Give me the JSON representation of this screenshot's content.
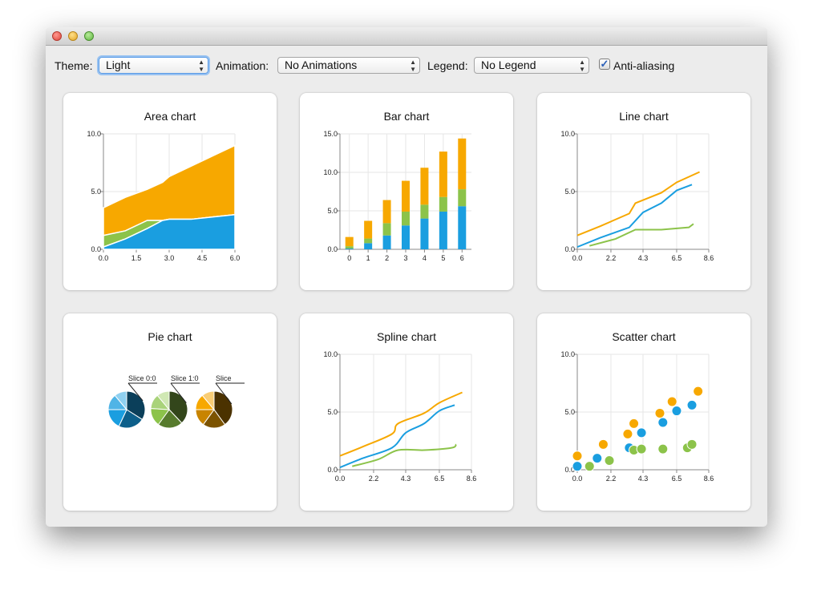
{
  "toolbar": {
    "theme_label": "Theme:",
    "theme_value": "Light",
    "animation_label": "Animation:",
    "animation_value": "No Animations",
    "legend_label": "Legend:",
    "legend_value": "No Legend",
    "antialias_label": "Anti-aliasing",
    "antialias_checked": true
  },
  "icons": {
    "close": "close-button",
    "minimize": "minimize-button",
    "maximize": "maximize-button",
    "combo_arrow": "up-down-arrows-icon",
    "check": "checkmark-icon"
  },
  "colors": {
    "blue": "#1a9ee0",
    "green": "#8cc34a",
    "orange": "#f7a800",
    "grid": "#e6e6e6",
    "axis": "#888888"
  },
  "chart_data": [
    {
      "type": "area",
      "title": "Area chart",
      "xlim": [
        0,
        6
      ],
      "ylim": [
        0,
        10
      ],
      "x_ticks": [
        "0.0",
        "1.5",
        "3.0",
        "4.5",
        "6.0"
      ],
      "y_ticks": [
        "0.0",
        "5.0",
        "10.0"
      ],
      "x": [
        0,
        1,
        2,
        2.7,
        3,
        4,
        5,
        6
      ],
      "series": [
        {
          "color": "#1a9ee0",
          "values": [
            0.2,
            0.9,
            1.8,
            2.5,
            2.6,
            2.6,
            2.8,
            3.0
          ]
        },
        {
          "color": "#8cc34a",
          "values": [
            1.2,
            1.6,
            2.5,
            2.5,
            2.6,
            2.6,
            2.8,
            3.0
          ]
        },
        {
          "color": "#f7a800",
          "values": [
            3.6,
            4.5,
            5.2,
            5.8,
            6.3,
            7.2,
            8.1,
            9.0
          ]
        }
      ]
    },
    {
      "type": "bar",
      "title": "Bar chart",
      "stacked": true,
      "ylim": [
        0,
        15
      ],
      "categories": [
        "0",
        "1",
        "2",
        "3",
        "4",
        "5",
        "6"
      ],
      "y_ticks": [
        "0.0",
        "5.0",
        "10.0",
        "15.0"
      ],
      "series": [
        {
          "color": "#1a9ee0",
          "values": [
            0.1,
            0.8,
            1.8,
            3.1,
            4.0,
            4.9,
            5.6
          ]
        },
        {
          "color": "#8cc34a",
          "values": [
            0.3,
            0.6,
            1.6,
            1.8,
            1.8,
            1.9,
            2.2
          ]
        },
        {
          "color": "#f7a800",
          "values": [
            1.2,
            2.3,
            3.0,
            4.0,
            4.8,
            5.9,
            6.6
          ]
        }
      ]
    },
    {
      "type": "line",
      "title": "Line chart",
      "xlim": [
        0,
        8.6
      ],
      "ylim": [
        0,
        10
      ],
      "x_ticks": [
        "0.0",
        "2.2",
        "4.3",
        "6.5",
        "8.6"
      ],
      "y_ticks": [
        "0.0",
        "5.0",
        "10.0"
      ],
      "series": [
        {
          "color": "#f7a800",
          "x": [
            0,
            1.5,
            3.4,
            3.8,
            5.5,
            6.5,
            8.0
          ],
          "y": [
            1.2,
            2.0,
            3.1,
            4.0,
            4.9,
            5.8,
            6.7
          ]
        },
        {
          "color": "#1a9ee0",
          "x": [
            0,
            1.5,
            3.4,
            4.3,
            5.5,
            6.5,
            7.5
          ],
          "y": [
            0.2,
            1.0,
            1.9,
            3.2,
            4.0,
            5.1,
            5.6
          ]
        },
        {
          "color": "#8cc34a",
          "x": [
            0.8,
            2.5,
            3.8,
            5.5,
            7.3,
            7.6
          ],
          "y": [
            0.3,
            0.9,
            1.7,
            1.7,
            1.9,
            2.2
          ]
        }
      ]
    },
    {
      "type": "pie",
      "title": "Pie chart",
      "pies": [
        {
          "label": "Slice 0:0",
          "colors": [
            "#0b3f5a",
            "#0d5f8a",
            "#1a9ee0",
            "#4fb4e6",
            "#8fd0f0"
          ],
          "values": [
            34,
            23,
            18,
            14,
            11
          ],
          "start_deg": 0
        },
        {
          "label": "Slice 1:0",
          "colors": [
            "#33461b",
            "#577b2d",
            "#8cc34a",
            "#a9d37a",
            "#d0e8b4"
          ],
          "values": [
            38,
            22,
            16,
            13,
            11
          ],
          "start_deg": 0
        },
        {
          "label": "Slice",
          "colors": [
            "#4b3200",
            "#7c5300",
            "#c88400",
            "#f7a800",
            "#f9cd75"
          ],
          "values": [
            40,
            20,
            15,
            14,
            11
          ],
          "start_deg": 0
        }
      ]
    },
    {
      "type": "line",
      "smooth": true,
      "title": "Spline chart",
      "xlim": [
        0,
        8.6
      ],
      "ylim": [
        0,
        10
      ],
      "x_ticks": [
        "0.0",
        "2.2",
        "4.3",
        "6.5",
        "8.6"
      ],
      "y_ticks": [
        "0.0",
        "5.0",
        "10.0"
      ],
      "series": [
        {
          "color": "#f7a800",
          "x": [
            0,
            1.5,
            3.4,
            3.8,
            5.5,
            6.5,
            8.0
          ],
          "y": [
            1.2,
            2.0,
            3.1,
            4.0,
            4.9,
            5.8,
            6.7
          ]
        },
        {
          "color": "#1a9ee0",
          "x": [
            0,
            1.5,
            3.4,
            4.3,
            5.5,
            6.5,
            7.5
          ],
          "y": [
            0.2,
            1.0,
            1.9,
            3.2,
            4.0,
            5.1,
            5.6
          ]
        },
        {
          "color": "#8cc34a",
          "x": [
            0.8,
            2.5,
            3.8,
            5.5,
            7.3,
            7.6
          ],
          "y": [
            0.3,
            0.9,
            1.7,
            1.7,
            1.9,
            2.2
          ]
        }
      ]
    },
    {
      "type": "scatter",
      "title": "Scatter chart",
      "xlim": [
        0,
        8.6
      ],
      "ylim": [
        0,
        10
      ],
      "x_ticks": [
        "0.0",
        "2.2",
        "4.3",
        "6.5",
        "8.6"
      ],
      "y_ticks": [
        "0.0",
        "5.0",
        "10.0"
      ],
      "series": [
        {
          "color": "#1a9ee0",
          "x": [
            0,
            1.3,
            3.4,
            4.2,
            5.6,
            6.5,
            7.5
          ],
          "y": [
            0.3,
            1.0,
            1.9,
            3.2,
            4.1,
            5.1,
            5.6
          ]
        },
        {
          "color": "#f7a800",
          "x": [
            0,
            1.7,
            3.3,
            3.7,
            5.4,
            6.2,
            7.9
          ],
          "y": [
            1.2,
            2.2,
            3.1,
            4.0,
            4.9,
            5.9,
            6.8
          ]
        },
        {
          "color": "#8cc34a",
          "x": [
            0.8,
            2.1,
            3.7,
            4.2,
            5.6,
            7.2,
            7.5
          ],
          "y": [
            0.3,
            0.8,
            1.7,
            1.8,
            1.8,
            1.9,
            2.2
          ]
        }
      ]
    }
  ]
}
